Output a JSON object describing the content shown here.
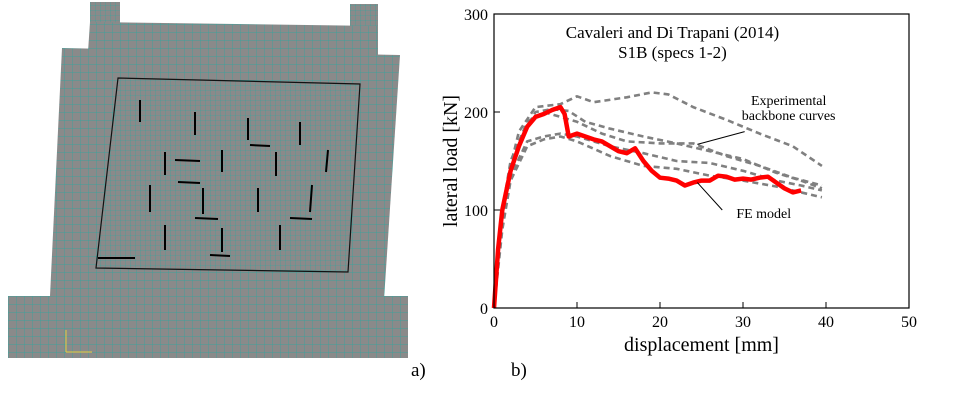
{
  "panels": {
    "left_label": "a)",
    "right_label": "b)"
  },
  "colors": {
    "mesh_fill": "#8a8a8a",
    "mesh_line": "#2aa8a0",
    "fe_model": "#ff0000",
    "experimental": "#808080"
  },
  "chart_data": {
    "type": "line",
    "title": "Cavaleri and Di Trapani (2014)",
    "subtitle": "S1B (specs 1-2)",
    "xlabel": "displacement [mm]",
    "ylabel": "lateral load [kN]",
    "xlim": [
      0,
      50
    ],
    "ylim": [
      0,
      300
    ],
    "xticks": [
      0,
      10,
      20,
      30,
      40,
      50
    ],
    "yticks": [
      0,
      100,
      200,
      300
    ],
    "grid": false,
    "annotations": [
      {
        "text": "Experimental",
        "x": 35.5,
        "y": 212
      },
      {
        "text": "backbone curves",
        "x": 35.5,
        "y": 197
      },
      {
        "text": "FE model",
        "x": 32.5,
        "y": 97
      }
    ],
    "series": [
      {
        "style": "solid-thick",
        "color": "#ff0000",
        "points": [
          [
            0,
            0
          ],
          [
            0.5,
            60
          ],
          [
            1,
            100
          ],
          [
            2,
            140
          ],
          [
            3,
            165
          ],
          [
            4,
            185
          ],
          [
            5,
            195
          ],
          [
            6,
            198
          ],
          [
            7,
            202
          ],
          [
            8,
            205
          ],
          [
            8.5,
            198
          ],
          [
            9,
            175
          ],
          [
            10,
            178
          ],
          [
            11,
            175
          ],
          [
            12,
            172
          ],
          [
            13,
            170
          ],
          [
            14,
            165
          ],
          [
            15,
            160
          ],
          [
            16,
            158
          ],
          [
            17,
            163
          ],
          [
            18,
            150
          ],
          [
            19,
            140
          ],
          [
            20,
            133
          ],
          [
            21,
            132
          ],
          [
            22,
            130
          ],
          [
            23,
            125
          ],
          [
            24,
            128
          ],
          [
            25,
            130
          ],
          [
            26,
            130
          ],
          [
            27,
            135
          ],
          [
            28,
            134
          ],
          [
            29,
            131
          ],
          [
            30,
            132
          ],
          [
            31,
            131
          ],
          [
            32,
            133
          ],
          [
            33,
            134
          ],
          [
            34,
            128
          ],
          [
            35,
            122
          ],
          [
            36,
            118
          ],
          [
            37,
            120
          ]
        ]
      },
      {
        "style": "dashed",
        "color": "#808080",
        "points": [
          [
            0,
            0
          ],
          [
            1,
            90
          ],
          [
            2,
            145
          ],
          [
            3,
            180
          ],
          [
            5,
            205
          ],
          [
            8,
            208
          ],
          [
            10,
            216
          ],
          [
            12,
            210
          ],
          [
            16,
            215
          ],
          [
            19,
            220
          ],
          [
            21,
            218
          ],
          [
            24,
            205
          ],
          [
            28,
            192
          ],
          [
            32,
            178
          ],
          [
            36,
            165
          ],
          [
            39.5,
            145
          ]
        ]
      },
      {
        "style": "dashed",
        "color": "#808080",
        "points": [
          [
            0,
            0
          ],
          [
            1,
            100
          ],
          [
            2,
            150
          ],
          [
            4,
            190
          ],
          [
            6,
            200
          ],
          [
            8,
            195
          ],
          [
            10,
            190
          ],
          [
            13,
            178
          ],
          [
            16,
            170
          ],
          [
            20,
            168
          ],
          [
            24,
            168
          ],
          [
            28,
            155
          ],
          [
            32,
            145
          ],
          [
            36,
            133
          ],
          [
            39.5,
            125
          ]
        ]
      },
      {
        "style": "dashed",
        "color": "#808080",
        "points": [
          [
            0,
            0
          ],
          [
            1,
            85
          ],
          [
            2,
            135
          ],
          [
            4,
            170
          ],
          [
            6,
            175
          ],
          [
            8,
            178
          ],
          [
            10,
            175
          ],
          [
            14,
            165
          ],
          [
            18,
            158
          ],
          [
            22,
            150
          ],
          [
            26,
            148
          ],
          [
            30,
            140
          ],
          [
            34,
            130
          ],
          [
            37,
            125
          ],
          [
            39.5,
            120
          ]
        ]
      },
      {
        "style": "dashed",
        "color": "#808080",
        "points": [
          [
            0,
            0
          ],
          [
            1,
            80
          ],
          [
            2,
            130
          ],
          [
            4,
            165
          ],
          [
            6,
            172
          ],
          [
            8,
            175
          ],
          [
            10,
            170
          ],
          [
            14,
            155
          ],
          [
            18,
            145
          ],
          [
            22,
            142
          ],
          [
            26,
            135
          ],
          [
            30,
            130
          ],
          [
            34,
            124
          ],
          [
            37,
            118
          ],
          [
            39.5,
            113
          ]
        ]
      },
      {
        "style": "dashed",
        "color": "#808080",
        "points": [
          [
            0,
            0
          ],
          [
            1,
            95
          ],
          [
            2,
            140
          ],
          [
            3,
            170
          ],
          [
            5,
            200
          ],
          [
            7,
            203
          ],
          [
            9,
            201
          ],
          [
            11,
            190
          ],
          [
            14,
            183
          ],
          [
            18,
            175
          ],
          [
            22,
            168
          ],
          [
            26,
            160
          ],
          [
            30,
            152
          ],
          [
            34,
            138
          ],
          [
            37,
            130
          ],
          [
            39.5,
            122
          ]
        ]
      }
    ]
  }
}
